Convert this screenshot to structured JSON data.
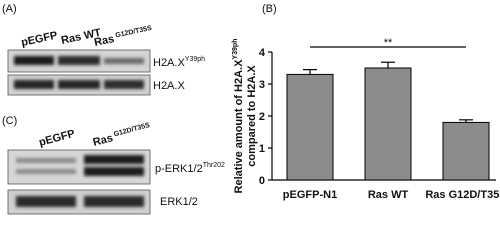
{
  "panel_a": {
    "label": "(A)",
    "lanes": [
      {
        "text": "pEGFP"
      },
      {
        "text": "Ras WT"
      },
      {
        "text": "Ras",
        "sup": "G12D/T35S"
      }
    ],
    "bands": [
      {
        "text": "H2A.X",
        "sup": "Y39ph"
      },
      {
        "text": "H2A.X"
      }
    ]
  },
  "panel_c": {
    "label": "(C)",
    "lanes": [
      {
        "text": "pEGFP"
      },
      {
        "text": "Ras",
        "sup": "G12D/T35S"
      }
    ],
    "bands": [
      {
        "text": "p-ERK1/2",
        "sup": "Thr202"
      },
      {
        "text": "ERK1/2"
      }
    ]
  },
  "chart_data": {
    "type": "bar",
    "panel_label": "(B)",
    "y_label": {
      "line1": "Relative amount of H2A.X",
      "line1_sup": "Y39ph",
      "line2": "compared to H2A.X"
    },
    "categories": [
      "pEGFP-N1",
      "Ras WT",
      "Ras G12D/T35S"
    ],
    "values": [
      3.3,
      3.5,
      1.8
    ],
    "errors": [
      0.15,
      0.18,
      0.08
    ],
    "color": "#8c8c8c",
    "ylim": [
      0,
      4
    ],
    "yticks": [
      0,
      1,
      2,
      3,
      4
    ],
    "annotation": "**"
  }
}
